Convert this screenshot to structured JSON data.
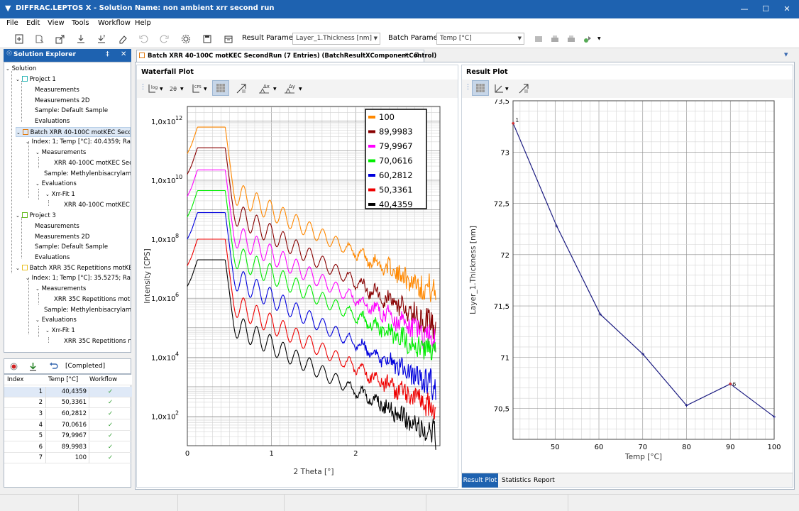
{
  "window": {
    "title": "DIFFRAC.LEPTOS X - Solution Name: non ambient xrr second run",
    "minimize": "—",
    "maximize": "☐",
    "close": "✕"
  },
  "menu": [
    "File",
    "Edit",
    "View",
    "Tools",
    "Workflow",
    "Help"
  ],
  "toolbar": {
    "result_param_label": "Result Parameter",
    "result_param_value": "Layer_1.Thickness [nm]",
    "batch_param_label": "Batch Parameter",
    "batch_param_value": "Temp [°C]"
  },
  "solution_explorer": {
    "title": "Solution Explorer",
    "pin": "‡",
    "close": "✕",
    "tree": [
      "Solution",
      "Project 1",
      "Measurements",
      "Measurements 2D",
      "Sample: Default Sample",
      "Evaluations",
      "Batch XRR 40-100C motKEC Secon...",
      "Index: 1; Temp [°C]: 40.4359; Rat...",
      "Measurements",
      "XRR 40-100C motKEC Seco...",
      "Sample: Methylenbisacrylamide ...",
      "Evaluations",
      "Xrr-Fit 1",
      "XRR 40-100C motKEC S...",
      "Project 3",
      "Measurements",
      "Measurements 2D",
      "Sample: Default Sample",
      "Evaluations",
      "Batch XRR 35C Repetitions motKEC...",
      "Index: 1; Temp [°C]: 35.5275; Rat...",
      "Measurements",
      "XRR 35C Repetitions motKE...",
      "Sample: Methylenbisacrylamide ...",
      "Evaluations",
      "Xrr-Fit 1",
      "XRR 35C Repetitions mo..."
    ],
    "icon_colors": {
      "project1": "#2bb6b6",
      "batch1": "#e07a10",
      "project3": "#66bb22",
      "batch2": "#e8c020"
    }
  },
  "batch": {
    "status": "[Completed]",
    "columns": [
      "Index",
      "Temp [°C]",
      "Workflow State"
    ],
    "rows": [
      {
        "index": "1",
        "temp": "40,4359",
        "state": "✓"
      },
      {
        "index": "2",
        "temp": "50,3361",
        "state": "✓"
      },
      {
        "index": "3",
        "temp": "60,2812",
        "state": "✓"
      },
      {
        "index": "4",
        "temp": "70,0616",
        "state": "✓"
      },
      {
        "index": "5",
        "temp": "79,9967",
        "state": "✓"
      },
      {
        "index": "6",
        "temp": "89,9983",
        "state": "✓"
      },
      {
        "index": "7",
        "temp": "100",
        "state": "✓"
      }
    ]
  },
  "doc_tab": {
    "title": "Batch XRR 40-100C motKEC SecondRun (7 Entries) (BatchResultXComponentControl)",
    "pin": "⇥",
    "close": "⊗"
  },
  "waterfall": {
    "title": "Waterfall Plot",
    "tool_labels": {
      "log": "log",
      "twotheta": "2θ",
      "cps": "CPS",
      "dx": "Δx",
      "dy": "Δy"
    }
  },
  "result_plot": {
    "title": "Result Plot",
    "tabs": [
      "Result Plot",
      "Statistics",
      "Report"
    ],
    "point_labels": [
      "1",
      "6"
    ]
  },
  "chart_data": [
    {
      "type": "line",
      "name": "waterfall",
      "xlabel": "2 Theta [°]",
      "ylabel": "Intensity [CPS]",
      "y_scale": "log",
      "xlim": [
        0,
        3.0
      ],
      "ylim_exponent": [
        1,
        12.5
      ],
      "x_ticks": [
        "0",
        "1",
        "2"
      ],
      "y_ticks": [
        {
          "mantissa": "1,0x10",
          "exp": "12"
        },
        {
          "mantissa": "1,0x10",
          "exp": "10"
        },
        {
          "mantissa": "1,0x10",
          "exp": "8"
        },
        {
          "mantissa": "1,0x10",
          "exp": "6"
        },
        {
          "mantissa": "1,0x10",
          "exp": "4"
        },
        {
          "mantissa": "1,0x10",
          "exp": "2"
        }
      ],
      "grid": true,
      "legend_position": "top-right",
      "series": [
        {
          "name": "100",
          "color": "#ff8800",
          "plateau_exp": 11.8,
          "end_exp": 6.2
        },
        {
          "name": "89,9983",
          "color": "#880000",
          "plateau_exp": 11.1,
          "end_exp": 5.0
        },
        {
          "name": "79,9967",
          "color": "#ff00ff",
          "plateau_exp": 10.35,
          "end_exp": 4.55
        },
        {
          "name": "70,0616",
          "color": "#00ee00",
          "plateau_exp": 9.65,
          "end_exp": 4.05
        },
        {
          "name": "60,2812",
          "color": "#0000dd",
          "plateau_exp": 8.9,
          "end_exp": 3.0
        },
        {
          "name": "50,3361",
          "color": "#ee0000",
          "plateau_exp": 8.0,
          "end_exp": 2.25
        },
        {
          "name": "40,4359",
          "color": "#000000",
          "plateau_exp": 7.3,
          "end_exp": 1.4
        }
      ]
    },
    {
      "type": "line",
      "name": "result",
      "xlabel": "Temp [°C]",
      "ylabel": "Layer_1.Thickness [nm]",
      "xlim": [
        40.4,
        100
      ],
      "ylim": [
        70.2,
        73.5
      ],
      "x_ticks": [
        "50",
        "60",
        "70",
        "80",
        "90",
        "100"
      ],
      "y_ticks": [
        "73,5",
        "73",
        "72,5",
        "72",
        "71,5",
        "71",
        "70,5"
      ],
      "grid": true,
      "color": "#1a1a80",
      "x": [
        40.4359,
        50.3361,
        60.2812,
        70.0616,
        79.9967,
        89.9983,
        100
      ],
      "y": [
        73.28,
        72.28,
        71.42,
        71.03,
        70.53,
        70.74,
        70.42
      ]
    }
  ]
}
